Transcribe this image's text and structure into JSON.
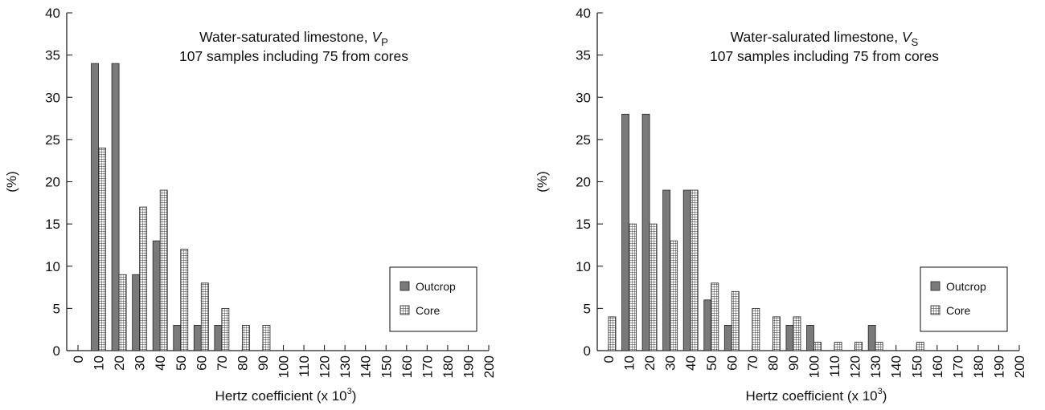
{
  "colors": {
    "outcrop": "#7a7a7a",
    "core": "#ffffff",
    "axis": "#222222"
  },
  "chart_data": [
    {
      "type": "bar",
      "title": "Water-saturated limestone, V",
      "title_subscript": "P",
      "subtitle": "107 samples including 75 from cores",
      "xlabel": "Hertz coefficient (x 10",
      "xlabel_superscript": "3",
      "xlabel_suffix": ")",
      "ylabel": "(%)",
      "ylim": [
        0,
        40
      ],
      "yticks": [
        "0",
        "5",
        "10",
        "15",
        "20",
        "25",
        "30",
        "35",
        "40"
      ],
      "xticks": [
        "0",
        "10",
        "20",
        "30",
        "40",
        "50",
        "60",
        "70",
        "80",
        "90",
        "100",
        "110",
        "120",
        "130",
        "140",
        "150",
        "160",
        "170",
        "180",
        "190",
        "200"
      ],
      "legend": {
        "position": "right",
        "entries": [
          "Outcrop",
          "Core"
        ]
      },
      "series": [
        {
          "name": "Outcrop",
          "x": [
            10,
            20,
            30,
            40,
            50,
            60,
            70
          ],
          "values": [
            34,
            34,
            9,
            13,
            3,
            3,
            3
          ]
        },
        {
          "name": "Core",
          "x": [
            10,
            20,
            30,
            40,
            50,
            60,
            70,
            80,
            90
          ],
          "values": [
            24,
            9,
            17,
            19,
            12,
            8,
            5,
            3,
            3
          ]
        }
      ]
    },
    {
      "type": "bar",
      "title": "Water-salurated limestone, V",
      "title_subscript": "S",
      "subtitle": "107 samples including 75 from cores",
      "xlabel": "Hertz coefficient (x 10",
      "xlabel_superscript": "3",
      "xlabel_suffix": ")",
      "ylabel": "(%)",
      "ylim": [
        0,
        40
      ],
      "yticks": [
        "0",
        "5",
        "10",
        "15",
        "20",
        "25",
        "30",
        "35",
        "40"
      ],
      "xticks": [
        "0",
        "10",
        "20",
        "30",
        "40",
        "50",
        "60",
        "70",
        "80",
        "90",
        "100",
        "110",
        "120",
        "130",
        "140",
        "150",
        "160",
        "170",
        "180",
        "190",
        "200"
      ],
      "legend": {
        "position": "right",
        "entries": [
          "Outcrop",
          "Core"
        ]
      },
      "series": [
        {
          "name": "Outcrop",
          "x": [
            10,
            20,
            30,
            40,
            50,
            60,
            90,
            100,
            130
          ],
          "values": [
            28,
            28,
            19,
            19,
            6,
            3,
            3,
            3,
            3
          ]
        },
        {
          "name": "Core",
          "x": [
            0,
            10,
            20,
            30,
            40,
            50,
            60,
            70,
            80,
            90,
            100,
            110,
            120,
            130,
            150
          ],
          "values": [
            4,
            15,
            15,
            13,
            19,
            8,
            7,
            5,
            4,
            4,
            1,
            1,
            1,
            1,
            1
          ]
        }
      ]
    }
  ]
}
